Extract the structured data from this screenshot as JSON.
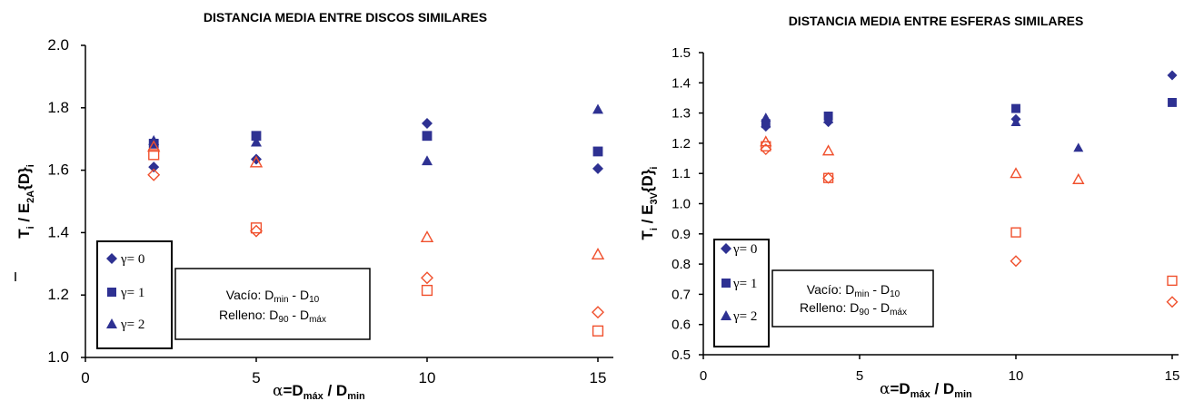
{
  "colors": {
    "series_filled": "#2e3192",
    "series_open": "#f0502d",
    "text": "#000000"
  },
  "chart_data": [
    {
      "type": "scatter",
      "title": "DISTANCIA  MEDIA ENTRE DISCOS SIMILARES",
      "ylabel": {
        "base": "T",
        "base_sub": "i",
        "mid": " / E",
        "mid_sub": "2A",
        "tail": "{D}",
        "tail_sub": "i"
      },
      "xlabel": {
        "alpha": "α",
        "eq": "=D",
        "sub1": "máx",
        "mid": " / D",
        "sub2": "min"
      },
      "xlim": [
        0,
        15
      ],
      "ylim": [
        1.0,
        2.0
      ],
      "x_ticks": [
        0,
        5,
        10,
        15
      ],
      "x_tick_labels": [
        "0",
        "5",
        "10",
        "15"
      ],
      "y_ticks": [
        1.0,
        1.2,
        1.4,
        1.6,
        1.8,
        2.0
      ],
      "y_tick_labels": [
        "1.0",
        "1.2",
        "1.4",
        "1.6",
        "1.8",
        "2.0"
      ],
      "grid": false,
      "legend_position": "bottom-left",
      "legend": [
        {
          "marker": "diamond",
          "label": "γ= 0"
        },
        {
          "marker": "square",
          "label": "γ= 1"
        },
        {
          "marker": "triangle",
          "label": "γ= 2"
        }
      ],
      "note": {
        "line1_a": "Vacío:  D",
        "line1_b": "min",
        "line1_c": "  - D",
        "line1_d": "10",
        "line2_a": "Relleno:  D",
        "line2_b": "90",
        "line2_c": "  - D",
        "line2_d": "máx"
      },
      "series": [
        {
          "group": "vacio",
          "gamma": 0,
          "marker": "diamond",
          "filled": true,
          "points": [
            [
              2,
              1.61
            ],
            [
              5,
              1.635
            ],
            [
              10,
              1.75
            ],
            [
              15,
              1.605
            ]
          ]
        },
        {
          "group": "vacio",
          "gamma": 1,
          "marker": "square",
          "filled": true,
          "points": [
            [
              2,
              1.685
            ],
            [
              5,
              1.71
            ],
            [
              10,
              1.71
            ],
            [
              15,
              1.66
            ]
          ]
        },
        {
          "group": "vacio",
          "gamma": 2,
          "marker": "triangle",
          "filled": true,
          "points": [
            [
              2,
              1.695
            ],
            [
              5,
              1.69
            ],
            [
              10,
              1.63
            ],
            [
              15,
              1.795
            ]
          ]
        },
        {
          "group": "relleno",
          "gamma": 0,
          "marker": "diamond",
          "filled": false,
          "points": [
            [
              2,
              1.585
            ],
            [
              5,
              1.405
            ],
            [
              10,
              1.255
            ],
            [
              15,
              1.145
            ]
          ]
        },
        {
          "group": "relleno",
          "gamma": 1,
          "marker": "square",
          "filled": false,
          "points": [
            [
              2,
              1.65
            ],
            [
              5,
              1.415
            ],
            [
              10,
              1.215
            ],
            [
              15,
              1.085
            ]
          ]
        },
        {
          "group": "relleno",
          "gamma": 2,
          "marker": "triangle",
          "filled": false,
          "points": [
            [
              2,
              1.675
            ],
            [
              5,
              1.625
            ],
            [
              10,
              1.385
            ],
            [
              15,
              1.33
            ]
          ]
        }
      ]
    },
    {
      "type": "scatter",
      "title": "DISTANCIA MEDIA ENTRE ESFERAS SIMILARES",
      "ylabel": {
        "base": "T",
        "base_sub": "i",
        "mid": " / E",
        "mid_sub": "3V",
        "tail": "{D}",
        "tail_sub": "i"
      },
      "xlabel": {
        "alpha": "α",
        "eq": "=D",
        "sub1": "máx",
        "mid": " / D",
        "sub2": "min"
      },
      "xlim": [
        0,
        15
      ],
      "ylim": [
        0.5,
        1.5
      ],
      "x_ticks": [
        0,
        5,
        10,
        15
      ],
      "x_tick_labels": [
        "0",
        "5",
        "10",
        "15"
      ],
      "y_ticks": [
        0.5,
        0.6,
        0.7,
        0.8,
        0.9,
        1.0,
        1.1,
        1.2,
        1.3,
        1.4,
        1.5
      ],
      "y_tick_labels": [
        "0.5",
        "0.6",
        "0.7",
        "0.8",
        "0.9",
        "1.0",
        "1.1",
        "1.2",
        "1.3",
        "1.4",
        "1.5"
      ],
      "grid": false,
      "legend_position": "bottom-left",
      "legend": [
        {
          "marker": "diamond",
          "label": "γ= 0"
        },
        {
          "marker": "square",
          "label": "γ= 1"
        },
        {
          "marker": "triangle",
          "label": "γ= 2"
        }
      ],
      "note": {
        "line1_a": "Vacío:  D",
        "line1_b": "min",
        "line1_c": "  - D",
        "line1_d": "10",
        "line2_a": "Relleno:  D",
        "line2_b": "90",
        "line2_c": " - D",
        "line2_d": "máx"
      },
      "series": [
        {
          "group": "vacio",
          "gamma": 0,
          "marker": "diamond",
          "filled": true,
          "points": [
            [
              2,
              1.255
            ],
            [
              4,
              1.27
            ],
            [
              10,
              1.28
            ],
            [
              15,
              1.425
            ]
          ]
        },
        {
          "group": "vacio",
          "gamma": 1,
          "marker": "square",
          "filled": true,
          "points": [
            [
              2,
              1.265
            ],
            [
              4,
              1.29
            ],
            [
              10,
              1.315
            ],
            [
              15,
              1.335
            ]
          ]
        },
        {
          "group": "vacio",
          "gamma": 2,
          "marker": "triangle",
          "filled": true,
          "points": [
            [
              2,
              1.285
            ],
            [
              4,
              1.28
            ],
            [
              10,
              1.27
            ],
            [
              12,
              1.185
            ]
          ]
        },
        {
          "group": "relleno",
          "gamma": 0,
          "marker": "diamond",
          "filled": false,
          "points": [
            [
              2,
              1.18
            ],
            [
              4,
              1.085
            ],
            [
              10,
              0.81
            ],
            [
              15,
              0.675
            ]
          ]
        },
        {
          "group": "relleno",
          "gamma": 1,
          "marker": "square",
          "filled": false,
          "points": [
            [
              2,
              1.19
            ],
            [
              4,
              1.085
            ],
            [
              10,
              0.905
            ],
            [
              15,
              0.745
            ]
          ]
        },
        {
          "group": "relleno",
          "gamma": 2,
          "marker": "triangle",
          "filled": false,
          "points": [
            [
              2,
              1.205
            ],
            [
              4,
              1.175
            ],
            [
              10,
              1.1
            ],
            [
              12,
              1.08
            ]
          ]
        }
      ]
    }
  ]
}
